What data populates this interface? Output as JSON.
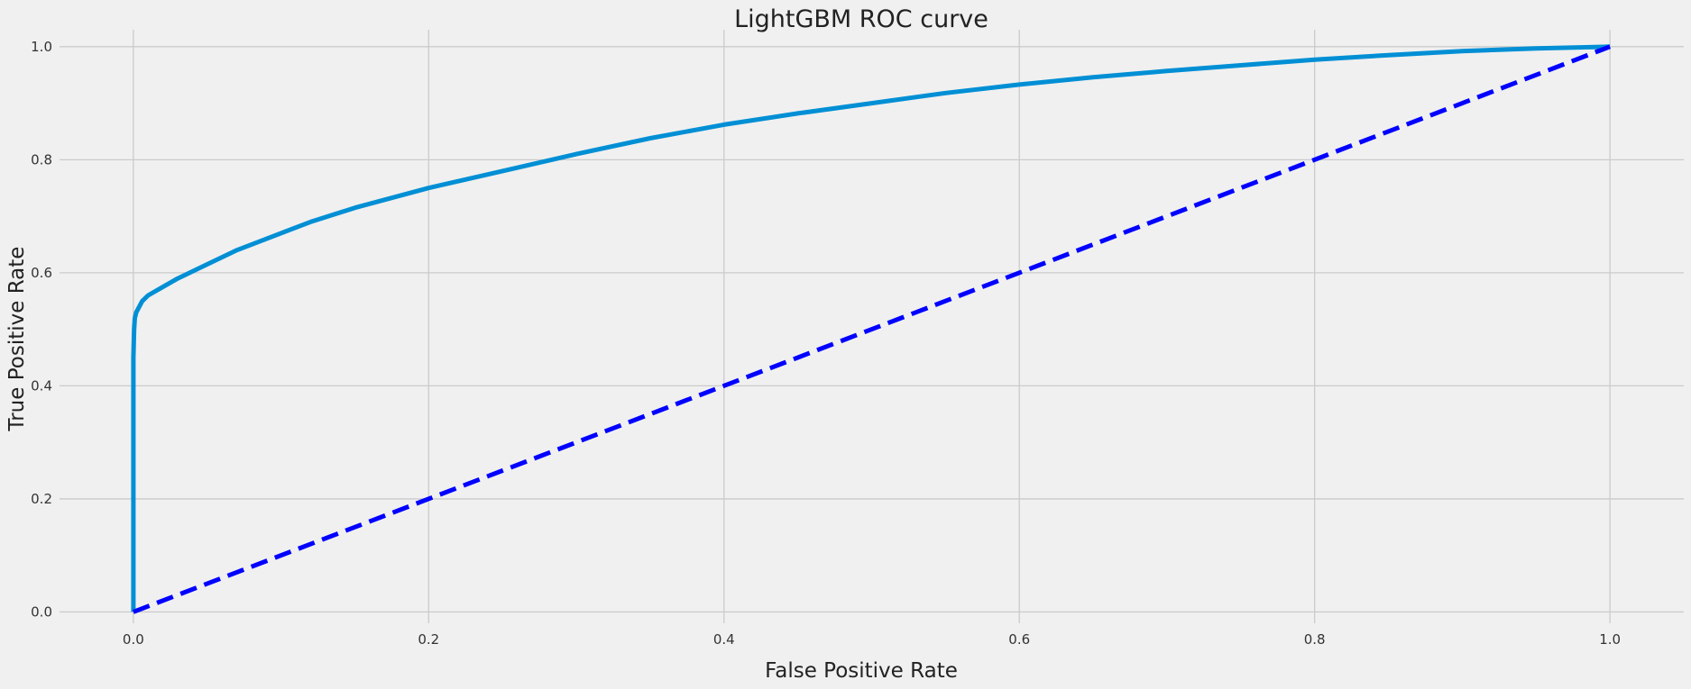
{
  "chart_data": {
    "type": "line",
    "title": "LightGBM ROC curve",
    "xlabel": "False Positive Rate",
    "ylabel": "True Positive Rate",
    "xlim": [
      -0.05,
      1.05
    ],
    "ylim": [
      -0.02,
      1.03
    ],
    "xticks": [
      0.0,
      0.2,
      0.4,
      0.6,
      0.8,
      1.0
    ],
    "xtick_labels": [
      "0.0",
      "0.2",
      "0.4",
      "0.6",
      "0.8",
      "1.0"
    ],
    "yticks": [
      0.0,
      0.2,
      0.4,
      0.6,
      0.8,
      1.0
    ],
    "ytick_labels": [
      "0.0",
      "0.2",
      "0.4",
      "0.6",
      "0.8",
      "1.0"
    ],
    "grid": true,
    "series": [
      {
        "style": "solid",
        "color": "#008fd5",
        "x": [
          0.0,
          0.0,
          0.0005,
          0.001,
          0.002,
          0.004,
          0.006,
          0.01,
          0.02,
          0.03,
          0.05,
          0.07,
          0.1,
          0.12,
          0.15,
          0.2,
          0.25,
          0.3,
          0.35,
          0.4,
          0.45,
          0.5,
          0.55,
          0.6,
          0.65,
          0.7,
          0.75,
          0.8,
          0.85,
          0.9,
          0.95,
          1.0
        ],
        "y": [
          0.0,
          0.45,
          0.5,
          0.52,
          0.53,
          0.54,
          0.55,
          0.56,
          0.575,
          0.59,
          0.615,
          0.64,
          0.67,
          0.69,
          0.715,
          0.75,
          0.78,
          0.81,
          0.838,
          0.862,
          0.882,
          0.9,
          0.918,
          0.933,
          0.946,
          0.957,
          0.967,
          0.977,
          0.985,
          0.992,
          0.997,
          1.0
        ]
      },
      {
        "style": "dashed",
        "color": "#0000ff",
        "x": [
          0.0,
          1.0
        ],
        "y": [
          0.0,
          1.0
        ]
      }
    ]
  }
}
